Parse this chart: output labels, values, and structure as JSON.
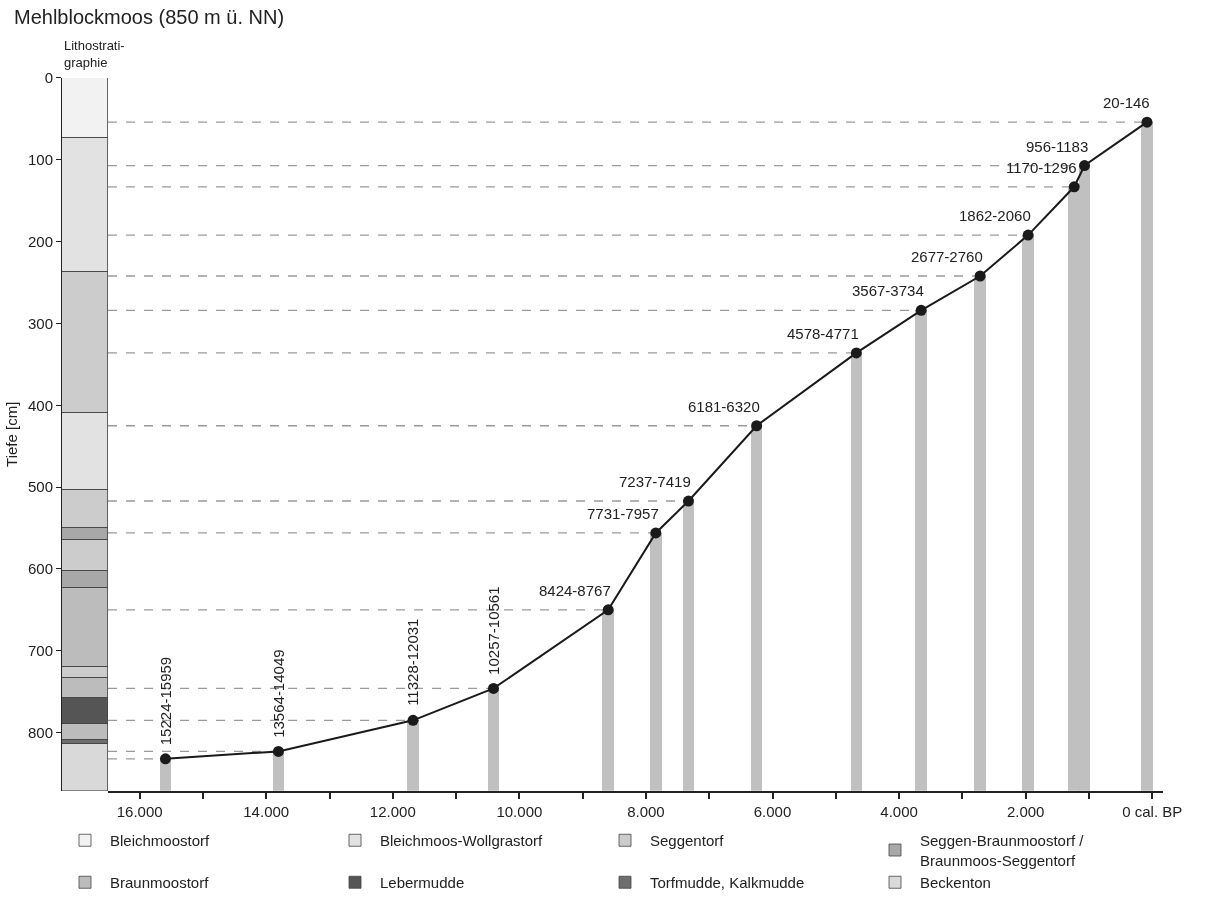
{
  "chart_data": [
    {
      "type": "bar",
      "title": "Lithostrati-\ngraphie",
      "ylabel": "Tiefe [cm]",
      "categories": [
        null
      ],
      "stacked": true,
      "ylim": [
        871,
        0
      ],
      "yticks": [
        0,
        100,
        200,
        300,
        400,
        500,
        600,
        700,
        800
      ],
      "tick_labels": "y",
      "legend": "bottom",
      "series": [
        {
          "name": "Bleichmoostorf",
          "color": "#f2f2f2",
          "values": [
            73
          ]
        },
        {
          "name": "Bleichmoos-Wollgrastorf",
          "color": "#e2e2e2",
          "values": [
            164
          ]
        },
        {
          "name": "Seggentorf",
          "color": "#cccccc",
          "values": [
            172
          ]
        },
        {
          "color": "#e2e2e2",
          "values": [
            95
          ]
        },
        {
          "color": "#cccccc",
          "values": [
            46
          ]
        },
        {
          "name": "Seggen-Braunmoostorf /\nBraunmoos-Seggentorf",
          "color": "#a8a8a8",
          "values": [
            14
          ]
        },
        {
          "color": "#cccccc",
          "values": [
            38
          ]
        },
        {
          "color": "#a8a8a8",
          "values": [
            21
          ]
        },
        {
          "name": "Braunmoostorf",
          "color": "#bcbcbc",
          "values": [
            97
          ]
        },
        {
          "color": "#cccccc",
          "values": [
            13
          ]
        },
        {
          "color": "#bcbcbc",
          "values": [
            25
          ]
        },
        {
          "name": "Lebermudde",
          "color": "#555555",
          "values": [
            32
          ]
        },
        {
          "color": "#bcbcbc",
          "values": [
            19
          ]
        },
        {
          "name": "Torfmudde, Kalkmudde",
          "color": "#6e6e6e",
          "values": [
            5
          ]
        },
        {
          "name": "Beckenton",
          "color": "#d9d9d9",
          "values": [
            57
          ]
        }
      ]
    },
    {
      "type": "line",
      "title": "Mehlblockmoos (850 m ü. NN)",
      "xlim": [
        16500,
        -170
      ],
      "ylim": [
        871,
        0
      ],
      "xticks": [
        {
          "value": 16000,
          "label": "16.000"
        },
        {
          "value": 15000,
          "label": null
        },
        {
          "value": 14000,
          "label": "14.000"
        },
        {
          "value": 13000,
          "label": null
        },
        {
          "value": 12000,
          "label": "12.000"
        },
        {
          "value": 11000,
          "label": null
        },
        {
          "value": 10000,
          "label": "10.000"
        },
        {
          "value": 9000,
          "label": null
        },
        {
          "value": 8000,
          "label": "8.000"
        },
        {
          "value": 7000,
          "label": null
        },
        {
          "value": 6000,
          "label": "6.000"
        },
        {
          "value": 5000,
          "label": null
        },
        {
          "value": 4000,
          "label": "4.000"
        },
        {
          "value": 3000,
          "label": null
        },
        {
          "value": 2000,
          "label": "2.000"
        },
        {
          "value": 1000,
          "label": null
        },
        {
          "value": 0,
          "label": "0 cal. BP"
        }
      ],
      "tick_labels": "x",
      "marker": "circle",
      "series": [
        {
          "type": "bar",
          "color": "#c0c0c0",
          "x": [
            15592,
            13807,
            11680,
            10409,
            8596,
            7844,
            7328,
            6251,
            4675,
            3651,
            2719,
            1961,
            1233,
            1070,
            83
          ],
          "base": [
            832,
            823,
            785,
            746,
            650,
            556,
            517,
            425,
            336,
            284,
            242,
            192,
            133,
            107,
            54
          ],
          "values": [
            39,
            48,
            86,
            125,
            221,
            315,
            354,
            446,
            535,
            587,
            629,
            679,
            738,
            764,
            817
          ]
        },
        {
          "type": "line",
          "color": "#1a1a1a",
          "x": [
            15592,
            13807,
            11680,
            10409,
            8596,
            7844,
            7328,
            6251,
            4675,
            3651,
            2719,
            1961,
            1233,
            1070,
            83
          ],
          "values": [
            832,
            823,
            785,
            746,
            650,
            556,
            517,
            425,
            336,
            284,
            242,
            192,
            133,
            107,
            54
          ]
        }
      ],
      "annotations": [
        {
          "text": "15224-15959",
          "x": 15592,
          "y": 832
        },
        {
          "text": "13564-14049",
          "x": 13807,
          "y": 823
        },
        {
          "text": "11328-12031",
          "x": 11680,
          "y": 785
        },
        {
          "text": "10257-10561",
          "x": 10409,
          "y": 746
        },
        {
          "text": "8424-8767",
          "x": 8596,
          "y": 650
        },
        {
          "text": "7731-7957",
          "x": 7844,
          "y": 556
        },
        {
          "text": "7237-7419",
          "x": 7328,
          "y": 517
        },
        {
          "text": "6181-6320",
          "x": 6251,
          "y": 425
        },
        {
          "text": "4578-4771",
          "x": 4675,
          "y": 336
        },
        {
          "text": "3567-3734",
          "x": 3651,
          "y": 284
        },
        {
          "text": "2677-2760",
          "x": 2719,
          "y": 242
        },
        {
          "text": "1862-2060",
          "x": 1961,
          "y": 192
        },
        {
          "text": "1170-1296",
          "x": 1233,
          "y": 133
        },
        {
          "text": "956-1183",
          "x": 1070,
          "y": 107
        },
        {
          "text": "20-146",
          "x": 83,
          "y": 54
        }
      ]
    }
  ]
}
